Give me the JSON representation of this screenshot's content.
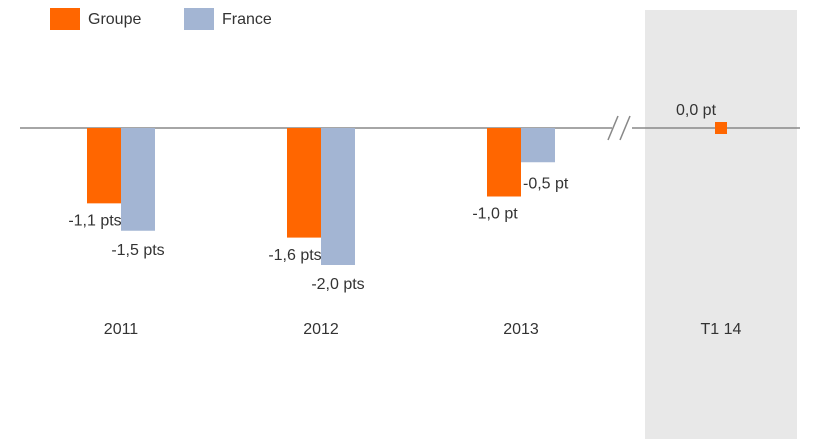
{
  "chart_data": {
    "type": "bar",
    "categories": [
      "2011",
      "2012",
      "2013",
      "T1 14"
    ],
    "series": [
      {
        "name": "Groupe",
        "color": "#ff6600",
        "values": [
          -1.1,
          -1.6,
          -1.0,
          0.0
        ],
        "value_labels": [
          "-1,1 pts",
          "-1,6 pts",
          "-1,0 pt",
          "0,0 pt"
        ]
      },
      {
        "name": "France",
        "color": "#a3b5d3",
        "values": [
          -1.5,
          -2.0,
          -0.5,
          null
        ],
        "value_labels": [
          "-1,5 pts",
          "-2,0 pts",
          "-0,5 pt",
          null
        ]
      }
    ]
  }
}
